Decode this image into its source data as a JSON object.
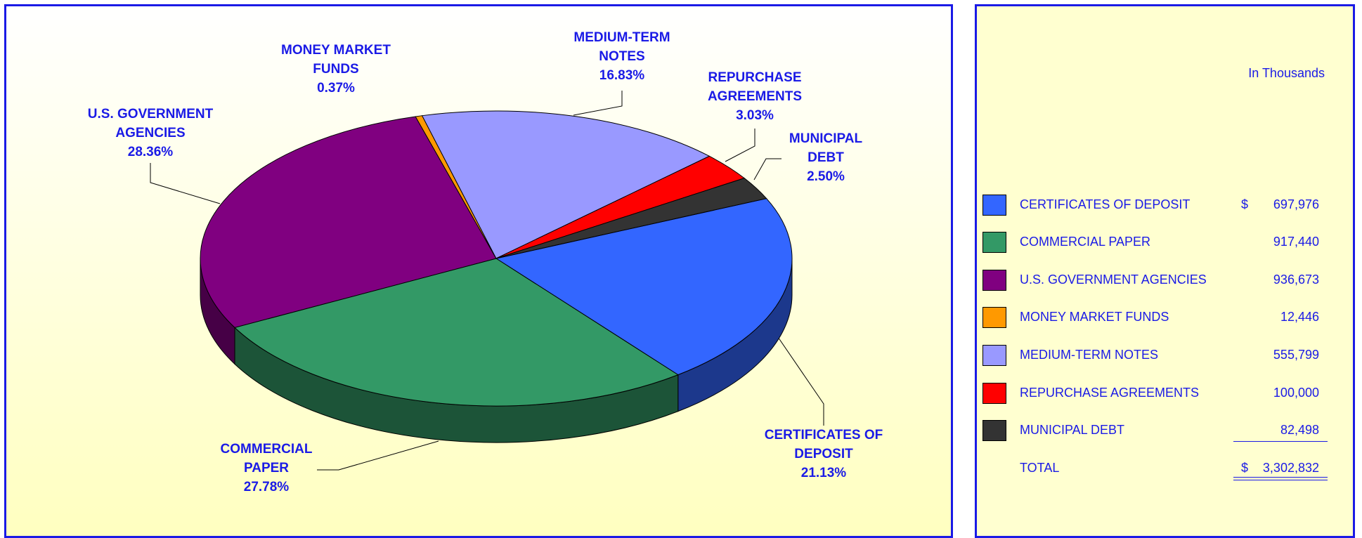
{
  "chart_data": {
    "type": "pie3d",
    "categories": [
      "CERTIFICATES OF DEPOSIT",
      "COMMERCIAL PAPER",
      "U.S. GOVERNMENT AGENCIES",
      "MONEY MARKET FUNDS",
      "MEDIUM-TERM NOTES",
      "REPURCHASE AGREEMENTS",
      "MUNICIPAL DEBT"
    ],
    "values": [
      21.13,
      27.78,
      28.36,
      0.37,
      16.83,
      3.03,
      2.5
    ],
    "value_labels": [
      "21.13%",
      "27.78%",
      "28.36%",
      "0.37%",
      "16.83%",
      "3.03%",
      "2.50%"
    ],
    "colors": [
      "#3366ff",
      "#339966",
      "#800080",
      "#ff9900",
      "#9999ff",
      "#ff0000",
      "#333333"
    ]
  },
  "table": {
    "unit": "In Thousands",
    "currency": "$",
    "amounts": [
      "697,976",
      "917,440",
      "936,673",
      "12,446",
      "555,799",
      "100,000",
      "82,498"
    ],
    "total_label": "TOTAL",
    "total": "3,302,832"
  }
}
